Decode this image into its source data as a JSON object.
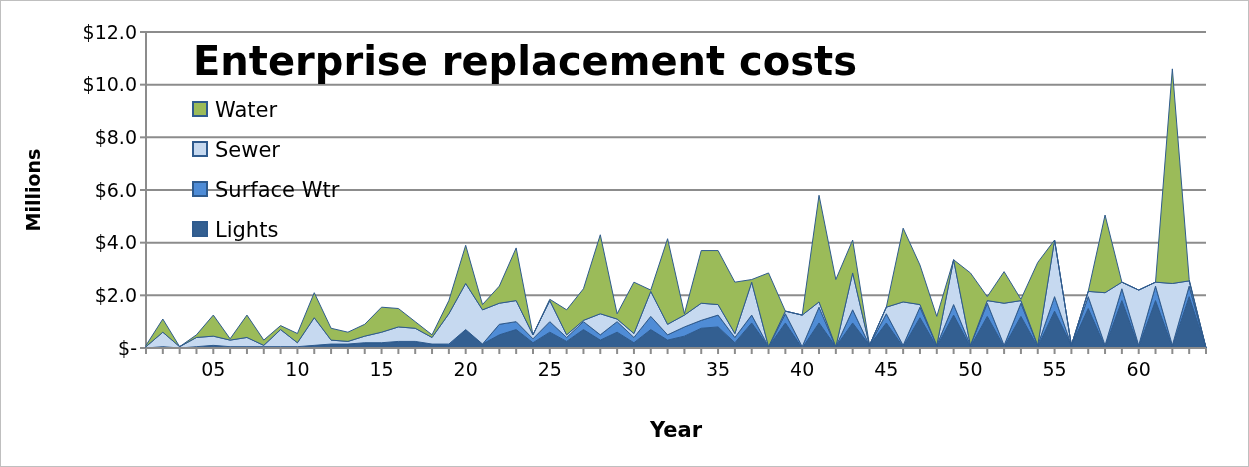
{
  "chart_data": {
    "type": "area",
    "title": "Enterprise replacement costs",
    "xlabel": "Year",
    "ylabel": "Millions",
    "stacked": true,
    "grid": "y",
    "legend": "top left",
    "categories": [
      null,
      null,
      null,
      null,
      "05",
      null,
      null,
      null,
      null,
      "10",
      null,
      null,
      null,
      null,
      "15",
      null,
      null,
      null,
      null,
      "20",
      null,
      null,
      null,
      null,
      "25",
      null,
      null,
      null,
      null,
      "30",
      null,
      null,
      null,
      null,
      "35",
      null,
      null,
      null,
      null,
      "40",
      null,
      null,
      null,
      null,
      "45",
      null,
      null,
      null,
      null,
      "50",
      null,
      null,
      null,
      null,
      "55",
      null,
      null,
      null,
      null,
      "60",
      null,
      null,
      null,
      null
    ],
    "ylim": [
      0,
      12
    ],
    "yticks": [
      {
        "value": 0,
        "label": "$-"
      },
      {
        "value": 2,
        "label": "$2.0"
      },
      {
        "value": 4,
        "label": "$4.0"
      },
      {
        "value": 6,
        "label": "$6.0"
      },
      {
        "value": 8,
        "label": "$8.0"
      },
      {
        "value": 10,
        "label": "$10.0"
      },
      {
        "value": 12,
        "label": "$12.0"
      }
    ],
    "series": [
      {
        "name": "Lights",
        "color": "#335f91",
        "values": [
          0,
          0.05,
          0,
          0.05,
          0.1,
          0.05,
          0.05,
          0.05,
          0.05,
          0.05,
          0.1,
          0.15,
          0.15,
          0.2,
          0.2,
          0.25,
          0.25,
          0.15,
          0.1,
          0.7,
          0.15,
          0.5,
          0.7,
          0.2,
          0.6,
          0.25,
          0.7,
          0.3,
          0.6,
          0.2,
          0.7,
          0.3,
          0.45,
          0.75,
          0.8,
          0.2,
          0.95,
          0.05,
          0.95,
          0,
          0.95,
          0.05,
          0.95,
          0.1,
          0.95,
          0.05,
          1.15,
          0.05,
          1.25,
          0.05,
          1.2,
          0.05,
          1.2,
          0.05,
          1.4,
          0.1,
          1.5,
          0.05,
          1.8,
          0.05,
          1.8,
          0.05,
          1.95,
          0
        ]
      },
      {
        "name": "Surface Wtr",
        "color": "#4f8cd6",
        "values": [
          0,
          0,
          0,
          0,
          0,
          0,
          0,
          0,
          0,
          0,
          0,
          0,
          0,
          0,
          0,
          0,
          0,
          0,
          0.05,
          0,
          0,
          0.4,
          0.3,
          0.15,
          0.4,
          0.15,
          0.3,
          0.2,
          0.4,
          0.2,
          0.5,
          0.2,
          0.35,
          0.3,
          0.45,
          0.2,
          0.3,
          0,
          0.35,
          0.05,
          0.6,
          0,
          0.5,
          0,
          0.35,
          0.05,
          0.4,
          0.05,
          0.4,
          0.05,
          0.5,
          0.05,
          0.5,
          0.05,
          0.55,
          0,
          0.45,
          0.05,
          0.45,
          0.05,
          0.55,
          0.05,
          0.4,
          0
        ]
      },
      {
        "name": "Sewer",
        "color": "#c6d9f0",
        "values": [
          0.05,
          0.55,
          0.05,
          0.35,
          0.35,
          0.25,
          0.35,
          0.05,
          0.65,
          0.15,
          1.05,
          0.15,
          0.1,
          0.25,
          0.4,
          0.55,
          0.5,
          0.25,
          1.15,
          1.75,
          1.3,
          0.8,
          0.8,
          0.15,
          0.8,
          0.1,
          0.05,
          0.8,
          0.1,
          0.15,
          0.95,
          0.4,
          0.45,
          0.65,
          0.4,
          0.15,
          1.25,
          0,
          0.1,
          1.2,
          0.2,
          0,
          1.4,
          0,
          0.25,
          1.65,
          0.1,
          0,
          1.7,
          0,
          0.1,
          1.6,
          0.1,
          0,
          2.15,
          0,
          0.2,
          2.0,
          0.25,
          2.1,
          0.15,
          2.35,
          0.2,
          0
        ]
      },
      {
        "name": "Water",
        "color": "#9bbb59",
        "values": [
          0.05,
          0.5,
          0,
          0.1,
          0.8,
          0.05,
          0.85,
          0.2,
          0.15,
          0.35,
          0.95,
          0.45,
          0.35,
          0.45,
          0.95,
          0.7,
          0.25,
          0.1,
          0.5,
          1.45,
          0.2,
          0.65,
          2.0,
          0,
          0.05,
          0.95,
          1.2,
          3.0,
          0.2,
          1.95,
          0.05,
          3.25,
          0.05,
          2.0,
          2.05,
          1.95,
          0.1,
          2.8,
          0,
          0,
          4.05,
          2.55,
          1.25,
          0,
          0,
          2.8,
          1.5,
          1.1,
          0,
          2.75,
          0.15,
          1.2,
          0.05,
          3.15,
          0,
          0,
          0,
          2.95,
          0,
          0,
          0,
          8.15,
          0.05,
          0
        ]
      }
    ]
  }
}
